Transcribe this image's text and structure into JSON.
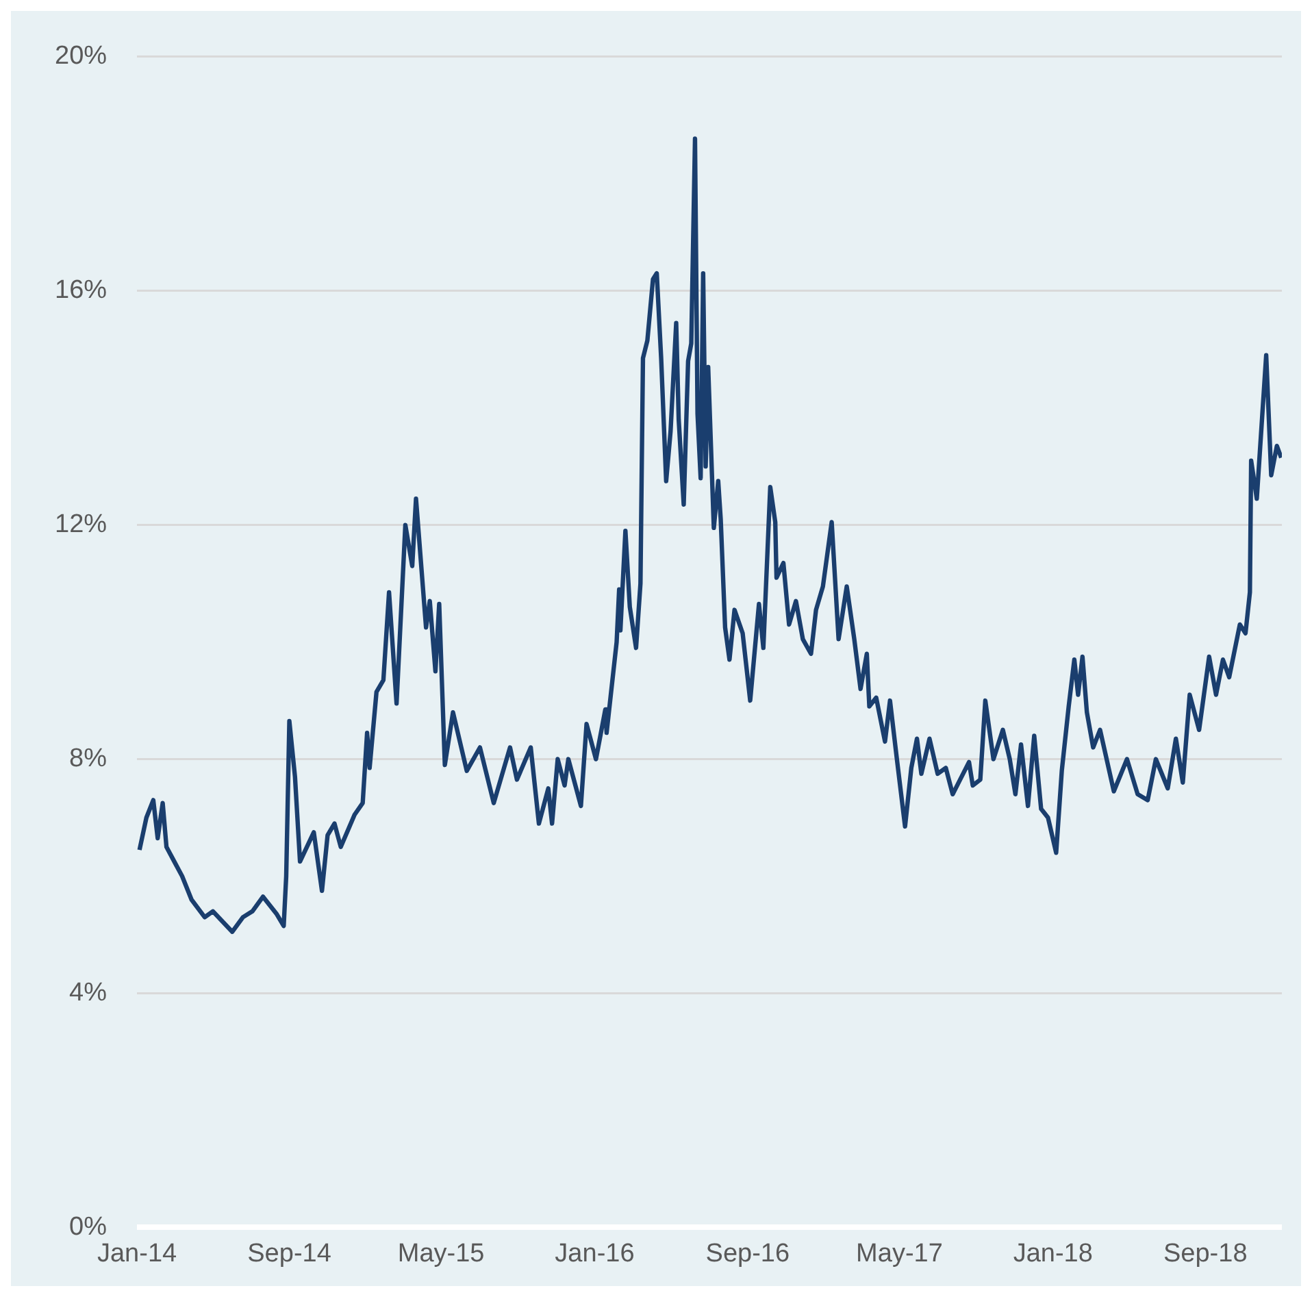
{
  "chart_data": {
    "type": "line",
    "x": [
      "2014-01-05",
      "2014-01-16",
      "2014-01-27",
      "2014-02-03",
      "2014-02-11",
      "2014-02-17",
      "2014-02-27",
      "2014-03-14",
      "2014-03-29",
      "2014-04-19",
      "2014-05-02",
      "2014-06-02",
      "2014-06-19",
      "2014-07-04",
      "2014-07-21",
      "2014-08-12",
      "2014-08-23",
      "2014-08-27",
      "2014-09-01",
      "2014-09-10",
      "2014-09-18",
      "2014-10-10",
      "2014-10-23",
      "2014-11-01",
      "2014-11-12",
      "2014-11-22",
      "2014-12-14",
      "2014-12-27",
      "2015-01-03",
      "2015-01-07",
      "2015-01-18",
      "2015-01-29",
      "2015-02-07",
      "2015-02-19",
      "2015-03-05",
      "2015-03-16",
      "2015-03-22",
      "2015-04-07",
      "2015-04-13",
      "2015-04-22",
      "2015-04-28",
      "2015-05-07",
      "2015-05-20",
      "2015-06-11",
      "2015-07-02",
      "2015-07-24",
      "2015-08-19",
      "2015-08-30",
      "2015-09-21",
      "2015-10-04",
      "2015-10-19",
      "2015-10-25",
      "2015-11-03",
      "2015-11-14",
      "2015-11-20",
      "2015-12-10",
      "2015-12-19",
      "2016-01-03",
      "2016-01-18",
      "2016-01-20",
      "2016-02-05",
      "2016-02-09",
      "2016-02-11",
      "2016-02-19",
      "2016-02-26",
      "2016-03-07",
      "2016-03-14",
      "2016-03-18",
      "2016-03-25",
      "2016-04-03",
      "2016-04-09",
      "2016-04-16",
      "2016-04-24",
      "2016-05-01",
      "2016-05-10",
      "2016-05-14",
      "2016-05-22",
      "2016-05-29",
      "2016-06-03",
      "2016-06-09",
      "2016-06-13",
      "2016-06-18",
      "2016-06-22",
      "2016-06-26",
      "2016-06-30",
      "2016-07-09",
      "2016-07-16",
      "2016-07-20",
      "2016-07-27",
      "2016-08-03",
      "2016-08-11",
      "2016-08-24",
      "2016-09-05",
      "2016-09-19",
      "2016-09-26",
      "2016-10-07",
      "2016-10-15",
      "2016-10-17",
      "2016-10-28",
      "2016-11-06",
      "2016-11-17",
      "2016-11-28",
      "2016-12-11",
      "2016-12-19",
      "2016-12-30",
      "2017-01-13",
      "2017-01-24",
      "2017-02-06",
      "2017-02-18",
      "2017-02-28",
      "2017-03-10",
      "2017-03-14",
      "2017-03-25",
      "2017-04-08",
      "2017-04-16",
      "2017-04-27",
      "2017-05-10",
      "2017-05-20",
      "2017-05-29",
      "2017-06-05",
      "2017-06-18",
      "2017-07-01",
      "2017-07-14",
      "2017-07-25",
      "2017-08-20",
      "2017-08-26",
      "2017-09-07",
      "2017-09-15",
      "2017-09-28",
      "2017-10-13",
      "2017-10-24",
      "2017-11-02",
      "2017-11-11",
      "2017-11-22",
      "2017-12-02",
      "2017-12-13",
      "2017-12-24",
      "2018-01-06",
      "2018-01-15",
      "2018-01-26",
      "2018-02-04",
      "2018-02-10",
      "2018-02-17",
      "2018-02-24",
      "2018-03-06",
      "2018-03-17",
      "2018-04-08",
      "2018-04-29",
      "2018-05-16",
      "2018-06-01",
      "2018-06-14",
      "2018-07-03",
      "2018-07-16",
      "2018-07-27",
      "2018-08-07",
      "2018-08-22",
      "2018-09-07",
      "2018-09-18",
      "2018-09-29",
      "2018-10-09",
      "2018-10-26",
      "2018-11-04",
      "2018-11-11",
      "2018-11-13",
      "2018-11-22",
      "2018-12-07",
      "2018-12-15",
      "2018-12-24",
      "2018-12-31"
    ],
    "series": [
      {
        "color": "#1a3e6e",
        "values": [
          6.45,
          7.0,
          7.3,
          6.65,
          7.25,
          6.5,
          6.3,
          6.0,
          5.6,
          5.3,
          5.4,
          5.05,
          5.3,
          5.4,
          5.65,
          5.35,
          5.15,
          6.0,
          8.65,
          7.7,
          6.25,
          6.75,
          5.75,
          6.7,
          6.9,
          6.5,
          7.05,
          7.25,
          8.45,
          7.85,
          9.15,
          9.35,
          10.85,
          8.95,
          12.0,
          11.3,
          12.45,
          10.25,
          10.7,
          9.5,
          10.65,
          7.9,
          8.8,
          7.8,
          8.2,
          7.25,
          8.2,
          7.65,
          8.2,
          6.9,
          7.5,
          6.9,
          8.0,
          7.55,
          8.0,
          7.2,
          8.6,
          8.0,
          8.85,
          8.45,
          10.0,
          10.9,
          10.2,
          11.9,
          10.6,
          9.9,
          11.0,
          14.85,
          15.15,
          16.2,
          16.3,
          14.85,
          12.75,
          13.6,
          15.45,
          13.8,
          12.35,
          14.8,
          15.1,
          18.6,
          13.9,
          12.8,
          16.3,
          13.0,
          14.7,
          11.95,
          12.75,
          12.1,
          10.25,
          9.7,
          10.55,
          10.15,
          9.0,
          10.65,
          9.9,
          12.65,
          12.05,
          11.1,
          11.35,
          10.3,
          10.7,
          10.05,
          9.8,
          10.55,
          10.95,
          12.05,
          10.05,
          10.95,
          10.05,
          9.2,
          9.8,
          8.9,
          9.05,
          8.3,
          9.0,
          8.0,
          6.85,
          7.85,
          8.35,
          7.75,
          8.35,
          7.75,
          7.85,
          7.4,
          7.95,
          7.55,
          7.65,
          9.0,
          8.0,
          8.5,
          8.0,
          7.4,
          8.25,
          7.2,
          8.4,
          7.15,
          7.0,
          6.4,
          7.8,
          8.9,
          9.7,
          9.1,
          9.75,
          8.8,
          8.2,
          8.5,
          7.45,
          8.0,
          7.4,
          7.3,
          8.0,
          7.5,
          8.35,
          7.6,
          9.1,
          8.5,
          9.75,
          9.1,
          9.7,
          9.4,
          10.3,
          10.15,
          10.85,
          13.1,
          12.45,
          14.9,
          12.85,
          13.35,
          13.15
        ]
      }
    ],
    "xlim": [
      "2014-01-01",
      "2019-01-01"
    ],
    "xticks": [
      {
        "value": "2014-01-01",
        "label": "Jan-14"
      },
      {
        "value": "2014-09-01",
        "label": "Sep-14"
      },
      {
        "value": "2015-05-01",
        "label": "May-15"
      },
      {
        "value": "2016-01-01",
        "label": "Jan-16"
      },
      {
        "value": "2016-09-01",
        "label": "Sep-16"
      },
      {
        "value": "2017-05-01",
        "label": "May-17"
      },
      {
        "value": "2018-01-01",
        "label": "Jan-18"
      },
      {
        "value": "2018-09-01",
        "label": "Sep-18"
      }
    ],
    "ylim": [
      0,
      20
    ],
    "yticks": [
      {
        "value": 0,
        "label": "0%"
      },
      {
        "value": 4,
        "label": "4%"
      },
      {
        "value": 8,
        "label": "8%"
      },
      {
        "value": 12,
        "label": "12%"
      },
      {
        "value": 16,
        "label": "16%"
      },
      {
        "value": 20,
        "label": "20%"
      }
    ],
    "grid": "y",
    "legend": false,
    "marker": "none",
    "line_style": "solid"
  }
}
